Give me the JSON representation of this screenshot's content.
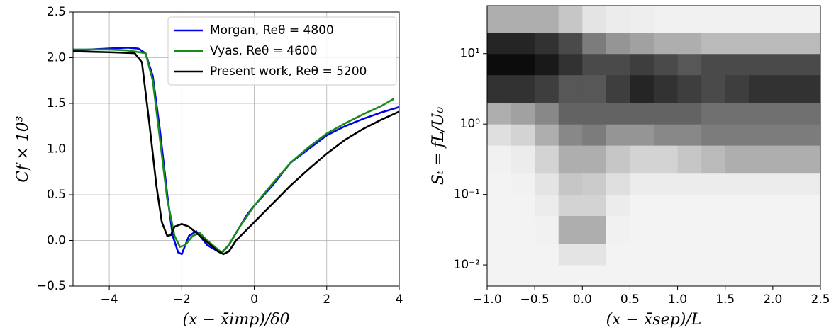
{
  "chart_data": [
    {
      "type": "line",
      "xlabel": "(x − x̄imp)/δ0",
      "ylabel": "Cf × 10³",
      "xlim": [
        -5,
        4
      ],
      "ylim": [
        -0.5,
        2.5
      ],
      "xticks": [
        {
          "value": -4,
          "label": "−4"
        },
        {
          "value": -2,
          "label": "−2"
        },
        0,
        2,
        4
      ],
      "yticks": [
        {
          "value": -0.5,
          "label": "−0.5"
        },
        {
          "value": 0,
          "label": "0.0"
        },
        0.5,
        {
          "value": 1,
          "label": "1.0"
        },
        1.5,
        {
          "value": 2,
          "label": "2.0"
        },
        2.5
      ],
      "grid": true,
      "legend": "upper right",
      "series": [
        {
          "name": "Morgan, Reθ = 4800",
          "color": "#0000ee",
          "x": [
            -5,
            -4,
            -3.5,
            -3.2,
            -3,
            -2.8,
            -2.6,
            -2.4,
            -2.25,
            -2.1,
            -2,
            -1.9,
            -1.8,
            -1.6,
            -1.5,
            -1.3,
            -1,
            -0.9,
            -0.7,
            -0.4,
            -0.2,
            0,
            0.5,
            1,
            1.5,
            2,
            2.5,
            3,
            3.5,
            4
          ],
          "values": [
            2.08,
            2.1,
            2.11,
            2.1,
            2.05,
            1.8,
            1.2,
            0.5,
            0.05,
            -0.13,
            -0.15,
            -0.05,
            0.05,
            0.1,
            0.05,
            -0.05,
            -0.12,
            -0.14,
            -0.05,
            0.15,
            0.28,
            0.38,
            0.6,
            0.85,
            1.0,
            1.15,
            1.25,
            1.33,
            1.4,
            1.46
          ]
        },
        {
          "name": "Vyas, Reθ = 4600",
          "color": "#1a8a1a",
          "x": [
            -5,
            -4,
            -3.5,
            -3,
            -2.8,
            -2.6,
            -2.4,
            -2.2,
            -2.05,
            -1.9,
            -1.7,
            -1.5,
            -1.3,
            -1,
            -0.9,
            -0.7,
            -0.4,
            0,
            0.5,
            1,
            1.5,
            2,
            2.5,
            3,
            3.5,
            3.85
          ],
          "values": [
            2.09,
            2.09,
            2.08,
            2.05,
            1.75,
            1.1,
            0.45,
            0.05,
            -0.07,
            -0.05,
            0.05,
            0.08,
            0.0,
            -0.1,
            -0.13,
            -0.05,
            0.15,
            0.38,
            0.62,
            0.85,
            1.02,
            1.17,
            1.28,
            1.38,
            1.47,
            1.55
          ]
        },
        {
          "name": "Present work, Reθ = 5200",
          "color": "#000000",
          "x": [
            -5,
            -4,
            -3.3,
            -3.1,
            -2.9,
            -2.7,
            -2.55,
            -2.4,
            -2.3,
            -2.2,
            -2,
            -1.8,
            -1.5,
            -1.2,
            -1,
            -0.85,
            -0.7,
            -0.5,
            0,
            0.5,
            1,
            1.5,
            2,
            2.5,
            3,
            3.5,
            4
          ],
          "values": [
            2.07,
            2.06,
            2.05,
            1.95,
            1.3,
            0.6,
            0.2,
            0.05,
            0.06,
            0.15,
            0.18,
            0.15,
            0.05,
            -0.05,
            -0.12,
            -0.15,
            -0.12,
            0.0,
            0.2,
            0.4,
            0.6,
            0.78,
            0.95,
            1.1,
            1.22,
            1.32,
            1.41
          ]
        }
      ]
    },
    {
      "type": "heatmap",
      "xlabel": "(x − x̄sep)/L",
      "ylabel": "Sₜ = fL/U₀",
      "xlim": [
        -1,
        2.5
      ],
      "ylim": [
        0.005,
        48
      ],
      "ylog": true,
      "colormap": "Greys",
      "xticks": [
        {
          "value": -1,
          "label": "−1.0"
        },
        {
          "value": -0.5,
          "label": "−0.5"
        },
        {
          "value": 0,
          "label": "0.0"
        },
        0.5,
        {
          "value": 1,
          "label": "1.0"
        },
        1.5,
        {
          "value": 2,
          "label": "2.0"
        },
        2.5
      ],
      "yticks": [
        {
          "value": 0.01,
          "label": "10⁻²"
        },
        {
          "value": 0.1,
          "label": "10⁻¹"
        },
        {
          "value": 1,
          "label": "10⁰"
        },
        {
          "value": 10,
          "label": "10¹"
        }
      ],
      "x_edges": [
        -1,
        -0.75,
        -0.5,
        -0.25,
        0,
        0.25,
        0.5,
        0.75,
        1,
        1.25,
        1.5,
        1.75,
        2,
        2.25,
        2.5
      ],
      "y_edges": [
        0.005,
        0.01,
        0.02,
        0.05,
        0.1,
        0.2,
        0.5,
        1,
        2,
        5,
        10,
        20,
        48
      ],
      "z": [
        [
          0.02,
          0.02,
          0.02,
          0.02,
          0.02,
          0.02,
          0.02,
          0.02,
          0.02,
          0.02,
          0.02,
          0.02,
          0.02,
          0.02
        ],
        [
          0.02,
          0.02,
          0.02,
          0.08,
          0.08,
          0.02,
          0.02,
          0.02,
          0.02,
          0.02,
          0.02,
          0.02,
          0.02,
          0.02
        ],
        [
          0.02,
          0.02,
          0.03,
          0.3,
          0.3,
          0.03,
          0.02,
          0.02,
          0.02,
          0.02,
          0.02,
          0.02,
          0.02,
          0.02
        ],
        [
          0.02,
          0.02,
          0.05,
          0.15,
          0.15,
          0.05,
          0.02,
          0.02,
          0.02,
          0.02,
          0.02,
          0.02,
          0.02,
          0.02
        ],
        [
          0.02,
          0.03,
          0.08,
          0.2,
          0.18,
          0.1,
          0.05,
          0.05,
          0.05,
          0.05,
          0.05,
          0.05,
          0.05,
          0.05
        ],
        [
          0.03,
          0.05,
          0.15,
          0.3,
          0.3,
          0.2,
          0.15,
          0.15,
          0.2,
          0.25,
          0.3,
          0.3,
          0.3,
          0.3
        ],
        [
          0.1,
          0.15,
          0.3,
          0.45,
          0.5,
          0.4,
          0.4,
          0.45,
          0.45,
          0.5,
          0.5,
          0.5,
          0.5,
          0.5
        ],
        [
          0.3,
          0.35,
          0.45,
          0.6,
          0.6,
          0.6,
          0.6,
          0.6,
          0.6,
          0.55,
          0.55,
          0.55,
          0.55,
          0.55
        ],
        [
          0.8,
          0.8,
          0.75,
          0.65,
          0.65,
          0.75,
          0.85,
          0.8,
          0.75,
          0.7,
          0.75,
          0.8,
          0.8,
          0.8
        ],
        [
          0.95,
          0.95,
          0.9,
          0.8,
          0.7,
          0.7,
          0.75,
          0.7,
          0.65,
          0.7,
          0.7,
          0.7,
          0.7,
          0.7
        ],
        [
          0.85,
          0.85,
          0.8,
          0.7,
          0.5,
          0.4,
          0.35,
          0.3,
          0.3,
          0.25,
          0.25,
          0.25,
          0.25,
          0.25
        ],
        [
          0.3,
          0.3,
          0.3,
          0.2,
          0.08,
          0.05,
          0.04,
          0.03,
          0.03,
          0.03,
          0.03,
          0.03,
          0.03,
          0.03
        ]
      ]
    }
  ]
}
